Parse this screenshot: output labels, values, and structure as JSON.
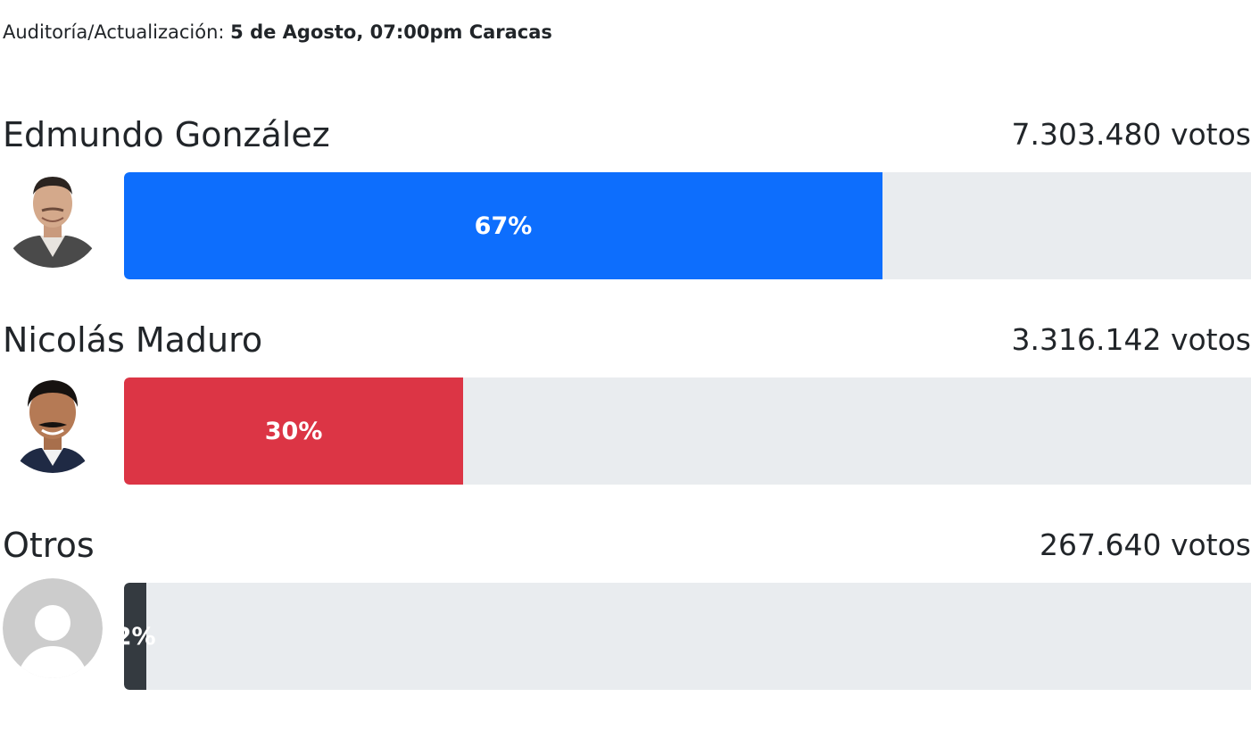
{
  "header": {
    "update_label": "Auditoría/Actualización:",
    "update_value": "5 de Agosto, 07:00pm Caracas"
  },
  "candidates": [
    {
      "name": "Edmundo González",
      "votes": "7.303.480 votos",
      "percent_label": "67%",
      "fraction": 0.673,
      "color": "#0d6efd",
      "avatar": "photo-edmundo-gonzalez"
    },
    {
      "name": "Nicolás Maduro",
      "votes": "3.316.142 votos",
      "percent_label": "30%",
      "fraction": 0.301,
      "color": "#dc3545",
      "avatar": "photo-nicolas-maduro"
    },
    {
      "name": "Otros",
      "votes": "267.640 votos",
      "percent_label": "2%",
      "fraction": 0.02,
      "color": "#343a40",
      "avatar": "placeholder-user-icon"
    }
  ],
  "colors": {
    "track": "#e9ecef",
    "text": "#212529"
  }
}
